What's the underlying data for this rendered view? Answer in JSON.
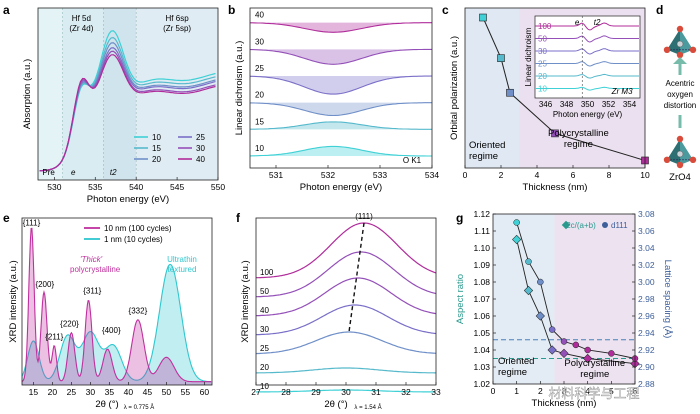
{
  "colors": {
    "c10": "#3fd1d6",
    "c15": "#56b9cc",
    "c20": "#6f8fc8",
    "c25": "#7a6fc8",
    "c30": "#9450b8",
    "c40": "#b02c9b",
    "magenta": "#c0309e",
    "cyan": "#2fc7cf",
    "navy": "#2c2a6e",
    "teal": "#2a9a8e"
  },
  "panels": [
    "a",
    "b",
    "c",
    "d",
    "e",
    "f",
    "g"
  ],
  "chart_data": [
    {
      "id": "a",
      "type": "line",
      "xlabel": "Photon energy (eV)",
      "ylabel": "Absorption (a.u.)",
      "xlim": [
        528,
        550
      ],
      "xticks": [
        "530",
        "535",
        "540",
        "545",
        "550"
      ],
      "region_labels": [
        {
          "text": "Hf 5d",
          "sub": "(Zr 4d)"
        },
        {
          "text": "Hf 6sp",
          "sub": "(Zr 5sp)"
        },
        {
          "text": "Pre"
        },
        {
          "text": "e"
        },
        {
          "text": "t2"
        }
      ],
      "legend": [
        "10",
        "15",
        "20",
        "25",
        "30",
        "40"
      ],
      "series": [
        {
          "name": "10",
          "peak_e": 0.55,
          "peak_t2": 0.92,
          "plateau": 0.62
        },
        {
          "name": "15",
          "peak_e": 0.56,
          "peak_t2": 0.88,
          "plateau": 0.6
        },
        {
          "name": "20",
          "peak_e": 0.57,
          "peak_t2": 0.85,
          "plateau": 0.58
        },
        {
          "name": "25",
          "peak_e": 0.58,
          "peak_t2": 0.82,
          "plateau": 0.57
        },
        {
          "name": "30",
          "peak_e": 0.59,
          "peak_t2": 0.8,
          "plateau": 0.55
        },
        {
          "name": "40",
          "peak_e": 0.6,
          "peak_t2": 0.78,
          "plateau": 0.54
        }
      ]
    },
    {
      "id": "b",
      "type": "area",
      "xlabel": "Photon energy (eV)",
      "ylabel": "Linear dichroism (a.u.)",
      "xlim": [
        530.5,
        534
      ],
      "xticks": [
        "531",
        "532",
        "533",
        "534"
      ],
      "annotation": "O K1",
      "series": [
        {
          "name": "40",
          "amp": 0.45
        },
        {
          "name": "30",
          "amp": 0.7
        },
        {
          "name": "25",
          "amp": 0.85
        },
        {
          "name": "20",
          "amp": 0.6
        },
        {
          "name": "15",
          "amp": -0.35
        },
        {
          "name": "10",
          "amp": -0.45
        }
      ]
    },
    {
      "id": "c",
      "type": "line",
      "xlabel": "Thickness (nm)",
      "ylabel": "Orbital polarization (a.u.)",
      "xlim": [
        0,
        10
      ],
      "xticks": [
        "0",
        "2",
        "4",
        "6",
        "8",
        "10"
      ],
      "x": [
        1,
        2,
        2.5,
        5,
        10
      ],
      "y": [
        1.0,
        0.73,
        0.5,
        0.23,
        0.05
      ],
      "region_labels": [
        "Oriented regime",
        "Polycrystalline regime"
      ],
      "inset": {
        "xlabel": "Photon energy (eV)",
        "ylabel": "Linear dichroism",
        "xticks": [
          "346",
          "348",
          "350",
          "352",
          "354"
        ],
        "labels": [
          "e",
          "t2",
          "Zr M3"
        ],
        "legend": [
          "100",
          "50",
          "30",
          "25",
          "20",
          "10"
        ]
      }
    },
    {
      "id": "d",
      "type": "table",
      "labels": [
        "Acentric oxygen distortion",
        "ZrO4"
      ]
    },
    {
      "id": "e",
      "type": "area",
      "xlabel": "2θ (°)|λ = 0.775 Å",
      "ylabel": "XRD intensity (a.u.)",
      "xlim": [
        12,
        62
      ],
      "xticks": [
        "15",
        "20",
        "25",
        "30",
        "35",
        "40",
        "45",
        "50",
        "55",
        "60"
      ],
      "legend": [
        "10 nm (100 cycles)",
        "1 nm (10 cycles)"
      ],
      "annotations": [
        "'Thick' polycrystalline",
        "Ultrathin textured",
        "{111}",
        "{200}",
        "{211}",
        "{220}",
        "{311}",
        "{400}",
        "{332}"
      ],
      "series": [
        {
          "name": "10 nm (100 cycles)",
          "peaks": [
            [
              14.5,
              0.95,
              0.7
            ],
            [
              17.8,
              0.55,
              0.8
            ],
            [
              20.5,
              0.22,
              0.6
            ],
            [
              25,
              0.3,
              0.9
            ],
            [
              29.5,
              0.5,
              0.9
            ],
            [
              34.5,
              0.2,
              1.2
            ],
            [
              42.5,
              0.38,
              1.6
            ],
            [
              50,
              0.15,
              2
            ]
          ]
        },
        {
          "name": "1 nm (10 cycles)",
          "peaks": [
            [
              15,
              0.25,
              1.5
            ],
            [
              24,
              0.28,
              2
            ],
            [
              30,
              0.3,
              2.2
            ],
            [
              36,
              0.22,
              2.2
            ],
            [
              51,
              0.72,
              2.8
            ]
          ]
        }
      ]
    },
    {
      "id": "f",
      "type": "line",
      "xlabel": "2θ (°)|λ = 1.54 Å",
      "ylabel": "XRD intensity (a.u.)",
      "xlim": [
        27,
        33
      ],
      "xticks": [
        "27",
        "28",
        "29",
        "30",
        "31",
        "32",
        "33"
      ],
      "annotation": "(111)",
      "series": [
        {
          "name": "100",
          "center": 30.6,
          "amp": 0.55
        },
        {
          "name": "50",
          "center": 30.5,
          "amp": 0.45
        },
        {
          "name": "40",
          "center": 30.4,
          "amp": 0.38
        },
        {
          "name": "30",
          "center": 30.3,
          "amp": 0.3
        },
        {
          "name": "25",
          "center": 30.1,
          "amp": 0.22
        },
        {
          "name": "20",
          "center": 30.0,
          "amp": 0.05
        },
        {
          "name": "10",
          "center": 30.0,
          "amp": 0.02
        }
      ]
    },
    {
      "id": "g",
      "type": "scatter",
      "xlabel": "Thickness (nm)",
      "ylabel": "Aspect ratio",
      "y2label": "Lattice spacing (Å)",
      "xlim": [
        0,
        6
      ],
      "ylim": [
        1.02,
        1.12
      ],
      "y2lim": [
        2.88,
        3.08
      ],
      "xticks": [
        "0",
        "1",
        "2",
        "3",
        "4",
        "5",
        "6"
      ],
      "yticks": [
        "1.02",
        "1.03",
        "1.04",
        "1.05",
        "1.06",
        "1.07",
        "1.08",
        "1.09",
        "1.10",
        "1.11",
        "1.12"
      ],
      "y2ticks": [
        "2.88",
        "2.90",
        "2.92",
        "2.94",
        "2.96",
        "2.98",
        "3.00",
        "3.02",
        "3.04",
        "3.06",
        "3.08"
      ],
      "legend": [
        "2c/(a+b)",
        "d111"
      ],
      "region_labels": [
        "Oriented regime",
        "Polycrystalline regime"
      ],
      "series": [
        {
          "name": "2c/(a+b)",
          "x": [
            1,
            1.5,
            2,
            2.5,
            3,
            4,
            6
          ],
          "y": [
            1.105,
            1.075,
            1.06,
            1.04,
            1.038,
            1.035,
            1.032
          ]
        },
        {
          "name": "d111",
          "x": [
            1,
            1.5,
            2,
            2.5,
            3,
            3.5,
            4,
            5,
            6
          ],
          "y": [
            1.115,
            1.092,
            1.08,
            1.052,
            1.045,
            1.043,
            1.04,
            1.038,
            1.035
          ]
        }
      ]
    }
  ],
  "watermark": "材料科学与工程"
}
